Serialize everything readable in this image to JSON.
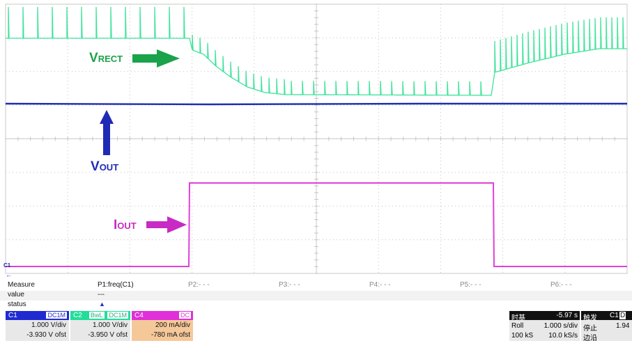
{
  "annotations": {
    "vrect": {
      "main": "V",
      "sub": "RECT",
      "color": "#1aa34a"
    },
    "vout": {
      "main": "V",
      "sub": "OUT",
      "color": "#1f2bb5"
    },
    "iout": {
      "main": "I",
      "sub": "OUT",
      "color": "#c72bc4"
    }
  },
  "markers": {
    "ch1": "C1",
    "arrow": "←"
  },
  "measure": {
    "row_labels": [
      "Measure",
      "value",
      "status"
    ],
    "p1": "P1:freq(C1)",
    "p1_value": "---",
    "p1_status_icon": "warning-triangle",
    "p1_status": "▲",
    "p_slots": [
      "P2:- - -",
      "P3:- - -",
      "P4:- - -",
      "P5:- - -",
      "P6:- - -"
    ]
  },
  "channels": [
    {
      "name": "C1",
      "coupling": "DC1M",
      "extra": "",
      "vdiv": "1.000 V/div",
      "offset": "-3.930 V ofst",
      "color": "#1f2bd1"
    },
    {
      "name": "C2",
      "coupling": "DC1M",
      "extra": "BwL",
      "vdiv": "1.000 V/div",
      "offset": "-3.950 V ofst",
      "color": "#22dd99"
    },
    {
      "name": "C4",
      "coupling": "DC",
      "extra": "",
      "vdiv": "200 mA/div",
      "offset": "-780 mA ofst",
      "color": "#e030d8"
    }
  ],
  "timebase": {
    "label": "时基",
    "value": "-5.97 s",
    "mode": "Roll",
    "tdiv": "1.000 s/div",
    "points": "100 kS",
    "rate": "10.0 kS/s"
  },
  "trigger": {
    "label": "触发",
    "source": "C1",
    "coupling": "D",
    "state": "停止",
    "level": "1.94",
    "slope": "边沿"
  },
  "colors": {
    "vrect": "#3de39a",
    "vout": "#1f2bb5",
    "iout": "#e040d8",
    "grid": "#c8c8c8"
  }
}
